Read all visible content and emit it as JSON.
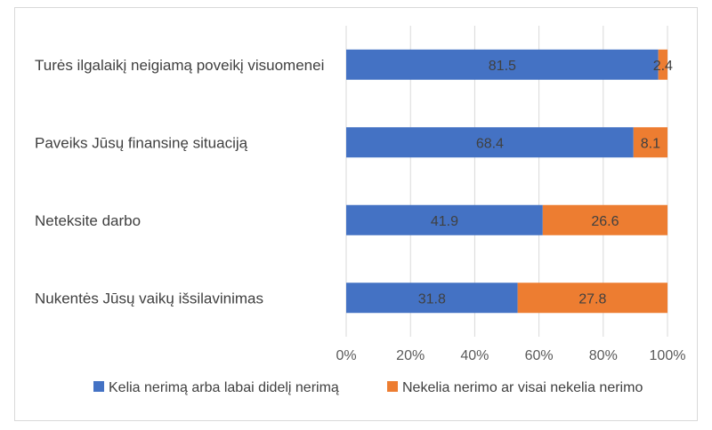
{
  "chart_data": {
    "type": "bar",
    "orientation": "horizontal",
    "stacked": "percent",
    "categories": [
      "Turės ilgalaikį neigiamą poveikį visuomenei",
      "Paveiks Jūsų finansinę situaciją",
      "Neteksite darbo",
      "Nukentės Jūsų vaikų išsilavinimas"
    ],
    "series": [
      {
        "name": "Kelia nerimą arba labai didelį nerimą",
        "values": [
          81.5,
          68.4,
          41.9,
          31.8
        ],
        "color": "#4472C4"
      },
      {
        "name": "Nekelia nerimo ar visai nekelia nerimo",
        "values": [
          2.4,
          8.1,
          26.6,
          27.8
        ],
        "color": "#ED7D31"
      }
    ],
    "xticks": [
      "0%",
      "20%",
      "40%",
      "60%",
      "80%",
      "100%"
    ],
    "xlim": [
      0,
      100
    ],
    "grid": true,
    "legend_position": "bottom"
  }
}
